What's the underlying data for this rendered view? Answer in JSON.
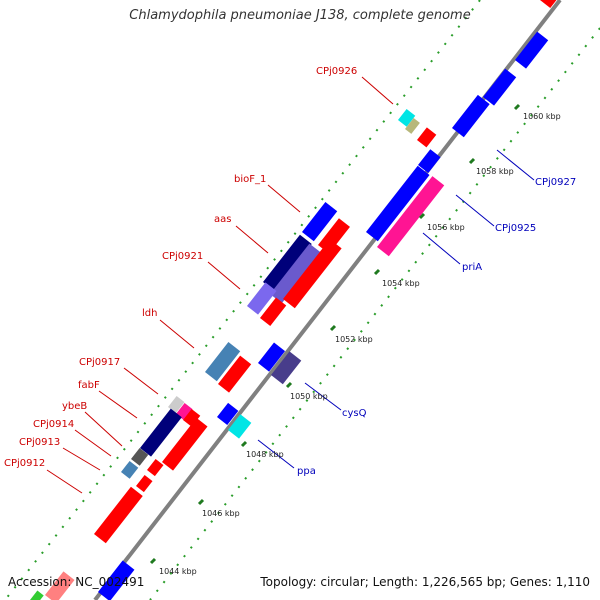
{
  "title": "Chlamydophila pneumoniae J138, complete genome",
  "footer": {
    "accession": "Accession: NC_002491",
    "summary": "Topology: circular; Length: 1,226,565 bp; Genes: 1,110"
  },
  "colors": {
    "backbone": "#777777",
    "label_left": "#cc0000",
    "label_right": "#0000bb",
    "dots": "#2a9d2a",
    "ticks": "#1f7a1f"
  },
  "ticks": [
    "1044 kbp",
    "1046 kbp",
    "1048 kbp",
    "1050 kbp",
    "1052 kbp",
    "1054 kbp",
    "1056 kbp",
    "1058 kbp",
    "1060 kbp"
  ],
  "labels_left": [
    "CPj0926",
    "bioF_1",
    "aas",
    "CPj0921",
    "ldh",
    "CPj0917",
    "fabF",
    "ybeB",
    "CPj0914",
    "CPj0913",
    "CPj0912"
  ],
  "labels_right": [
    "CPj0927",
    "CPj0925",
    "priA",
    "cysQ",
    "ppa"
  ]
}
